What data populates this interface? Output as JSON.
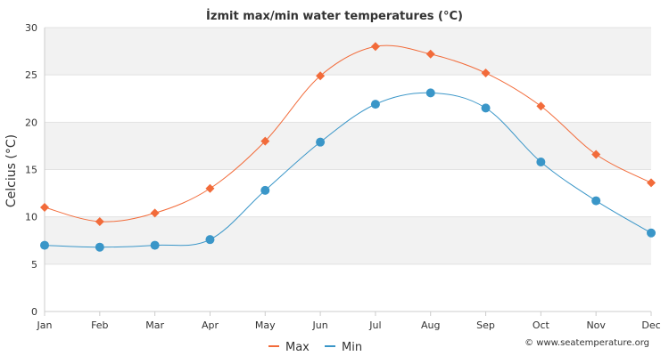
{
  "chart_data": {
    "type": "line",
    "title": "İzmit max/min water temperatures (°C)",
    "ylabel": "Celcius (°C)",
    "xlabel": "",
    "categories": [
      "Jan",
      "Feb",
      "Mar",
      "Apr",
      "May",
      "Jun",
      "Jul",
      "Aug",
      "Sep",
      "Oct",
      "Nov",
      "Dec"
    ],
    "y_ticks": [
      "0",
      "5",
      "10",
      "15",
      "20",
      "25",
      "30"
    ],
    "ylim": [
      0,
      30
    ],
    "series": [
      {
        "name": "Max",
        "color": "#f26b3a",
        "marker": "diamond",
        "values": [
          11.0,
          9.5,
          10.4,
          13.0,
          18.0,
          24.9,
          28.0,
          27.2,
          25.2,
          21.7,
          16.6,
          13.6
        ]
      },
      {
        "name": "Min",
        "color": "#3a96c8",
        "marker": "circle",
        "values": [
          7.0,
          6.8,
          7.0,
          7.6,
          12.8,
          17.9,
          21.9,
          23.1,
          21.5,
          15.8,
          11.7,
          8.3
        ]
      }
    ],
    "legend_placement": "bottom-center",
    "grid": true,
    "credit": "© www.seatemperature.org"
  }
}
